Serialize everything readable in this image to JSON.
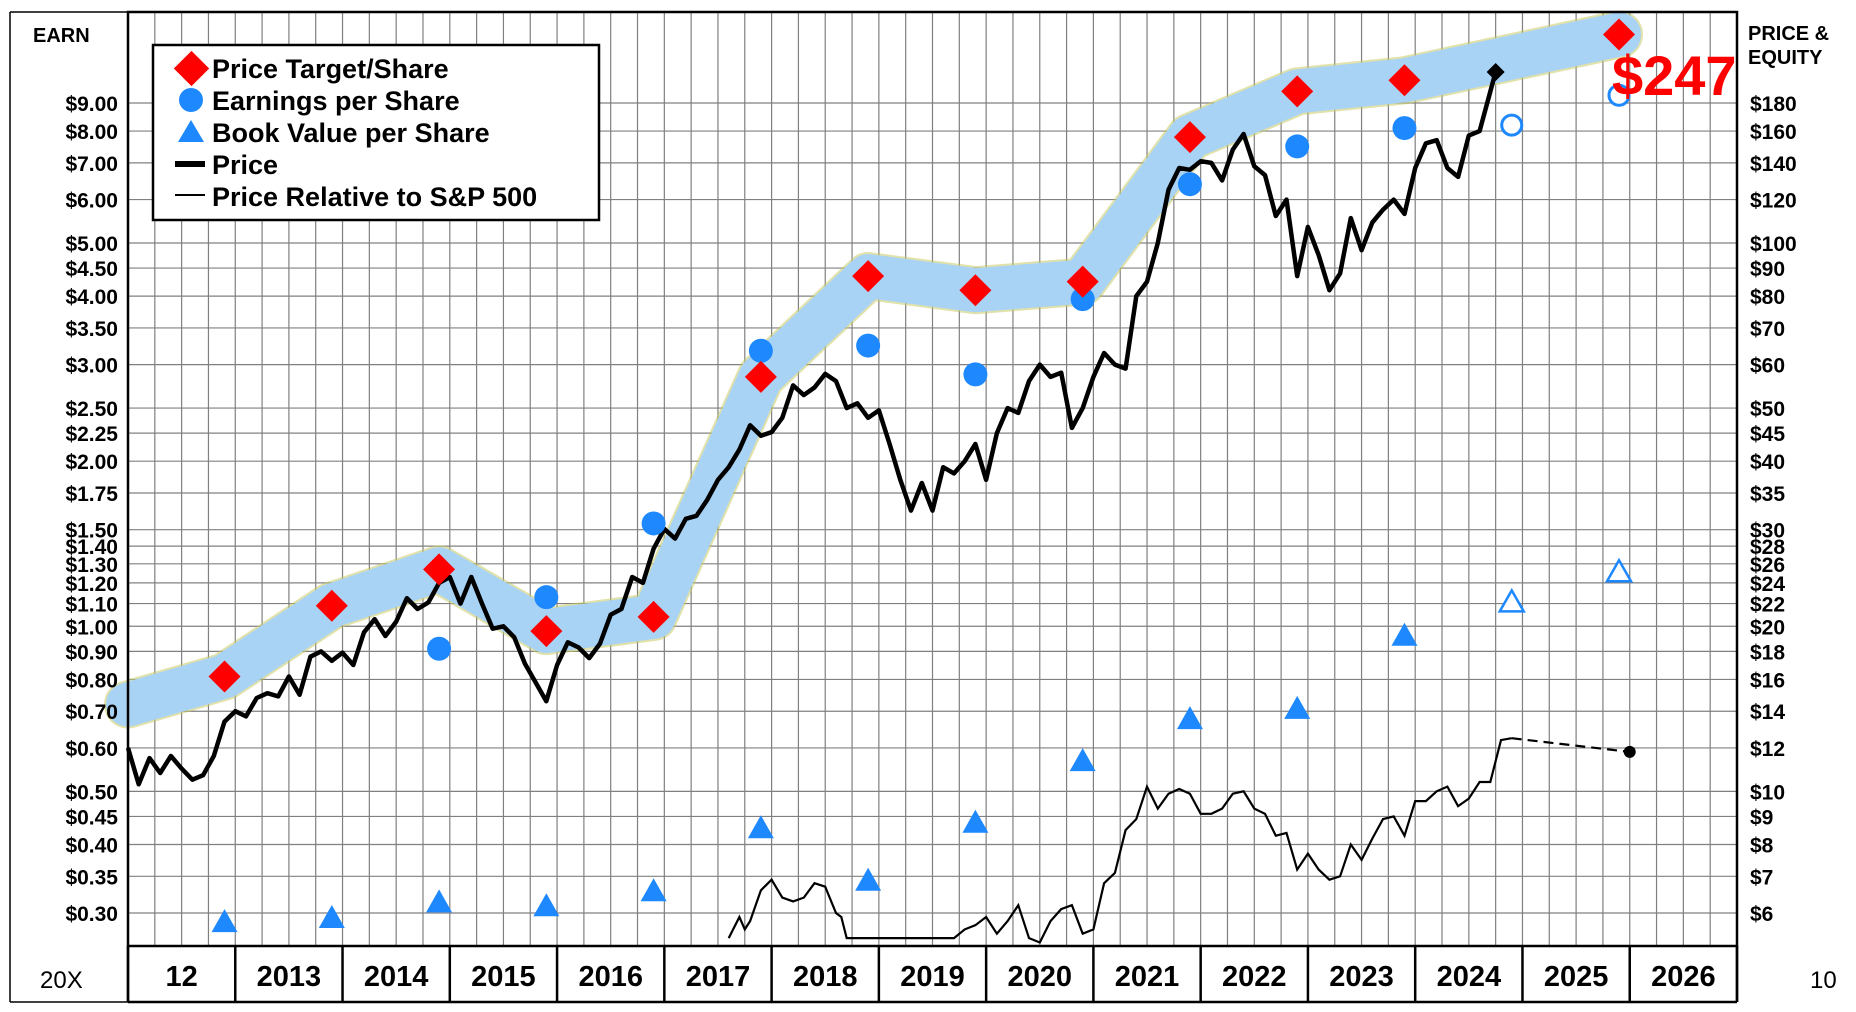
{
  "chart_data": {
    "type": "line",
    "title": "",
    "left_axis_label": "EARN",
    "right_axis_label": [
      "PRICE &",
      "EQUITY"
    ],
    "corner_left": "20X",
    "corner_right": "10",
    "big_price_label": "$247",
    "x_labels": [
      "12",
      "2013",
      "2014",
      "2015",
      "2016",
      "2017",
      "2018",
      "2019",
      "2020",
      "2021",
      "2022",
      "2023",
      "2024",
      "2025",
      "2026"
    ],
    "x_range": [
      2011.6,
      2026.6
    ],
    "earn_ticks": [
      {
        "v": 9.0,
        "label": "$9.00"
      },
      {
        "v": 8.0,
        "label": "$8.00"
      },
      {
        "v": 7.0,
        "label": "$7.00"
      },
      {
        "v": 6.0,
        "label": "$6.00"
      },
      {
        "v": 5.0,
        "label": "$5.00"
      },
      {
        "v": 4.5,
        "label": "$4.50"
      },
      {
        "v": 4.0,
        "label": "$4.00"
      },
      {
        "v": 3.5,
        "label": "$3.50"
      },
      {
        "v": 3.0,
        "label": "$3.00"
      },
      {
        "v": 2.5,
        "label": "$2.50"
      },
      {
        "v": 2.25,
        "label": "$2.25"
      },
      {
        "v": 2.0,
        "label": "$2.00"
      },
      {
        "v": 1.75,
        "label": "$1.75"
      },
      {
        "v": 1.5,
        "label": "$1.50"
      },
      {
        "v": 1.4,
        "label": "$1.40"
      },
      {
        "v": 1.3,
        "label": "$1.30"
      },
      {
        "v": 1.2,
        "label": "$1.20"
      },
      {
        "v": 1.1,
        "label": "$1.10"
      },
      {
        "v": 1.0,
        "label": "$1.00"
      },
      {
        "v": 0.9,
        "label": "$0.90"
      },
      {
        "v": 0.8,
        "label": "$0.80"
      },
      {
        "v": 0.7,
        "label": "$0.70"
      },
      {
        "v": 0.6,
        "label": "$0.60"
      },
      {
        "v": 0.5,
        "label": "$0.50"
      },
      {
        "v": 0.45,
        "label": "$0.45"
      },
      {
        "v": 0.4,
        "label": "$0.40"
      },
      {
        "v": 0.35,
        "label": "$0.35"
      },
      {
        "v": 0.3,
        "label": "$0.30"
      }
    ],
    "price_ticks": [
      {
        "v": 180,
        "label": "$180"
      },
      {
        "v": 160,
        "label": "$160"
      },
      {
        "v": 140,
        "label": "$140"
      },
      {
        "v": 120,
        "label": "$120"
      },
      {
        "v": 100,
        "label": "$100"
      },
      {
        "v": 90,
        "label": "$90"
      },
      {
        "v": 80,
        "label": "$80"
      },
      {
        "v": 70,
        "label": "$70"
      },
      {
        "v": 60,
        "label": "$60"
      },
      {
        "v": 50,
        "label": "$50"
      },
      {
        "v": 45,
        "label": "$45"
      },
      {
        "v": 40,
        "label": "$40"
      },
      {
        "v": 35,
        "label": "$35"
      },
      {
        "v": 30,
        "label": "$30"
      },
      {
        "v": 28,
        "label": "$28"
      },
      {
        "v": 26,
        "label": "$26"
      },
      {
        "v": 24,
        "label": "$24"
      },
      {
        "v": 22,
        "label": "$22"
      },
      {
        "v": 20,
        "label": "$20"
      },
      {
        "v": 18,
        "label": "$18"
      },
      {
        "v": 16,
        "label": "$16"
      },
      {
        "v": 14,
        "label": "$14"
      },
      {
        "v": 12,
        "label": "$12"
      },
      {
        "v": 10,
        "label": "$10"
      },
      {
        "v": 9,
        "label": "$9"
      },
      {
        "v": 8,
        "label": "$8"
      },
      {
        "v": 7,
        "label": "$7"
      },
      {
        "v": 6,
        "label": "$6"
      }
    ],
    "price_to_earn_ratio": 20,
    "legend": [
      {
        "label": "Price Target/Share",
        "marker": "diamond",
        "color": "#ff0000"
      },
      {
        "label": "Earnings per Share",
        "marker": "circle",
        "color": "#1e88ff"
      },
      {
        "label": "Book Value per Share",
        "marker": "triangle",
        "color": "#1e88ff"
      },
      {
        "label": "Price",
        "marker": "thick-line",
        "color": "#000000"
      },
      {
        "label": "Price Relative to S&P 500",
        "marker": "thin-line",
        "color": "#000000"
      }
    ],
    "band_color": "#a9d3f5",
    "series": {
      "price_target": [
        {
          "x": 2012.5,
          "v": 0.81
        },
        {
          "x": 2013.5,
          "v": 1.09
        },
        {
          "x": 2014.5,
          "v": 1.27
        },
        {
          "x": 2015.5,
          "v": 0.98
        },
        {
          "x": 2016.5,
          "v": 1.04
        },
        {
          "x": 2017.5,
          "v": 2.85
        },
        {
          "x": 2018.5,
          "v": 4.35
        },
        {
          "x": 2019.5,
          "v": 4.1
        },
        {
          "x": 2020.5,
          "v": 4.25
        },
        {
          "x": 2021.5,
          "v": 7.8
        },
        {
          "x": 2022.5,
          "v": 9.45
        },
        {
          "x": 2023.5,
          "v": 9.9
        },
        {
          "x": 2025.5,
          "v": 12.0
        }
      ],
      "target_band_start": {
        "x": 2011.6,
        "v": 0.72
      },
      "eps": [
        {
          "x": 2014.5,
          "v": 0.91
        },
        {
          "x": 2015.5,
          "v": 1.13
        },
        {
          "x": 2016.5,
          "v": 1.54
        },
        {
          "x": 2017.5,
          "v": 3.18
        },
        {
          "x": 2018.5,
          "v": 3.25
        },
        {
          "x": 2019.5,
          "v": 2.88
        },
        {
          "x": 2020.5,
          "v": 3.95
        },
        {
          "x": 2021.5,
          "v": 6.4
        },
        {
          "x": 2022.5,
          "v": 7.5
        },
        {
          "x": 2023.5,
          "v": 8.1
        }
      ],
      "eps_estimates": [
        {
          "x": 2024.5,
          "v": 8.2
        },
        {
          "x": 2025.5,
          "v": 9.3
        }
      ],
      "book_value": [
        {
          "x": 2012.5,
          "v": 0.29
        },
        {
          "x": 2013.5,
          "v": 0.295
        },
        {
          "x": 2014.5,
          "v": 0.315
        },
        {
          "x": 2015.5,
          "v": 0.31
        },
        {
          "x": 2016.5,
          "v": 0.33
        },
        {
          "x": 2017.5,
          "v": 0.43
        },
        {
          "x": 2018.5,
          "v": 0.345
        },
        {
          "x": 2019.5,
          "v": 0.44
        },
        {
          "x": 2020.5,
          "v": 0.57
        },
        {
          "x": 2021.5,
          "v": 0.68
        },
        {
          "x": 2022.5,
          "v": 0.71
        },
        {
          "x": 2023.5,
          "v": 0.965
        }
      ],
      "book_value_estimates": [
        {
          "x": 2024.5,
          "v": 1.11
        },
        {
          "x": 2025.5,
          "v": 1.26
        }
      ],
      "price": [
        [
          2011.6,
          12.0
        ],
        [
          2011.7,
          10.3
        ],
        [
          2011.8,
          11.5
        ],
        [
          2011.9,
          10.8
        ],
        [
          2012.0,
          11.6
        ],
        [
          2012.1,
          11.0
        ],
        [
          2012.2,
          10.5
        ],
        [
          2012.3,
          10.7
        ],
        [
          2012.4,
          11.6
        ],
        [
          2012.5,
          13.4
        ],
        [
          2012.6,
          14.0
        ],
        [
          2012.7,
          13.7
        ],
        [
          2012.8,
          14.8
        ],
        [
          2012.9,
          15.1
        ],
        [
          2013.0,
          14.9
        ],
        [
          2013.1,
          16.2
        ],
        [
          2013.2,
          15.0
        ],
        [
          2013.3,
          17.6
        ],
        [
          2013.4,
          18.0
        ],
        [
          2013.5,
          17.3
        ],
        [
          2013.6,
          17.9
        ],
        [
          2013.7,
          17.0
        ],
        [
          2013.8,
          19.5
        ],
        [
          2013.9,
          20.6
        ],
        [
          2014.0,
          19.2
        ],
        [
          2014.1,
          20.4
        ],
        [
          2014.2,
          22.5
        ],
        [
          2014.3,
          21.5
        ],
        [
          2014.4,
          22.1
        ],
        [
          2014.5,
          24.0
        ],
        [
          2014.6,
          24.6
        ],
        [
          2014.7,
          22.0
        ],
        [
          2014.8,
          24.6
        ],
        [
          2014.9,
          22.0
        ],
        [
          2015.0,
          19.8
        ],
        [
          2015.1,
          20.0
        ],
        [
          2015.2,
          19.1
        ],
        [
          2015.3,
          17.1
        ],
        [
          2015.4,
          15.8
        ],
        [
          2015.5,
          14.6
        ],
        [
          2015.6,
          17.0
        ],
        [
          2015.7,
          18.7
        ],
        [
          2015.8,
          18.3
        ],
        [
          2015.9,
          17.5
        ],
        [
          2016.0,
          18.6
        ],
        [
          2016.1,
          21.0
        ],
        [
          2016.2,
          21.5
        ],
        [
          2016.3,
          24.6
        ],
        [
          2016.4,
          24.0
        ],
        [
          2016.5,
          27.7
        ],
        [
          2016.6,
          30.1
        ],
        [
          2016.7,
          28.9
        ],
        [
          2016.8,
          31.4
        ],
        [
          2016.9,
          31.8
        ],
        [
          2017.0,
          34.0
        ],
        [
          2017.1,
          37.0
        ],
        [
          2017.2,
          39.0
        ],
        [
          2017.3,
          42.0
        ],
        [
          2017.4,
          46.5
        ],
        [
          2017.5,
          44.5
        ],
        [
          2017.6,
          45.2
        ],
        [
          2017.7,
          48.0
        ],
        [
          2017.8,
          55.0
        ],
        [
          2017.9,
          52.8
        ],
        [
          2018.0,
          54.5
        ],
        [
          2018.1,
          57.7
        ],
        [
          2018.2,
          56.0
        ],
        [
          2018.3,
          50.0
        ],
        [
          2018.4,
          51.0
        ],
        [
          2018.5,
          48.0
        ],
        [
          2018.6,
          49.5
        ],
        [
          2018.7,
          43.0
        ],
        [
          2018.8,
          37.0
        ],
        [
          2018.9,
          32.5
        ],
        [
          2019.0,
          36.5
        ],
        [
          2019.1,
          32.5
        ],
        [
          2019.2,
          39.0
        ],
        [
          2019.3,
          38.0
        ],
        [
          2019.4,
          40.0
        ],
        [
          2019.5,
          43.0
        ],
        [
          2019.6,
          37.0
        ],
        [
          2019.7,
          45.0
        ],
        [
          2019.8,
          50.0
        ],
        [
          2019.9,
          49.0
        ],
        [
          2020.0,
          56.0
        ],
        [
          2020.1,
          60.0
        ],
        [
          2020.2,
          57.0
        ],
        [
          2020.3,
          58.0
        ],
        [
          2020.4,
          46.0
        ],
        [
          2020.5,
          50.0
        ],
        [
          2020.6,
          57.0
        ],
        [
          2020.7,
          63.0
        ],
        [
          2020.8,
          60.0
        ],
        [
          2020.9,
          59.0
        ],
        [
          2021.0,
          80.0
        ],
        [
          2021.1,
          85.0
        ],
        [
          2021.2,
          100.0
        ],
        [
          2021.3,
          125.0
        ],
        [
          2021.4,
          137.0
        ],
        [
          2021.5,
          136.0
        ],
        [
          2021.6,
          141.0
        ],
        [
          2021.7,
          140.0
        ],
        [
          2021.8,
          130.0
        ],
        [
          2021.9,
          148.0
        ],
        [
          2022.0,
          158.0
        ],
        [
          2022.1,
          138.0
        ],
        [
          2022.2,
          133.0
        ],
        [
          2022.3,
          112.0
        ],
        [
          2022.4,
          120.0
        ],
        [
          2022.5,
          87.0
        ],
        [
          2022.6,
          107.0
        ],
        [
          2022.7,
          95.0
        ],
        [
          2022.8,
          82.0
        ],
        [
          2022.9,
          88.0
        ],
        [
          2023.0,
          111.0
        ],
        [
          2023.1,
          97.0
        ],
        [
          2023.2,
          109.0
        ],
        [
          2023.3,
          115.0
        ],
        [
          2023.4,
          120.0
        ],
        [
          2023.5,
          113.0
        ],
        [
          2023.6,
          137.0
        ],
        [
          2023.7,
          152.0
        ],
        [
          2023.8,
          154.0
        ],
        [
          2023.9,
          137.0
        ],
        [
          2024.0,
          132.0
        ],
        [
          2024.1,
          157.0
        ],
        [
          2024.2,
          160.0
        ],
        [
          2024.35,
          205.0
        ]
      ],
      "price_end_marker": {
        "x": 2024.35,
        "v": 205.0
      },
      "relative_strength": [
        [
          2017.2,
          5.4
        ],
        [
          2017.3,
          5.9
        ],
        [
          2017.35,
          5.6
        ],
        [
          2017.4,
          5.8
        ],
        [
          2017.5,
          6.6
        ],
        [
          2017.6,
          6.9
        ],
        [
          2017.7,
          6.4
        ],
        [
          2017.8,
          6.3
        ],
        [
          2017.9,
          6.4
        ],
        [
          2018.0,
          6.8
        ],
        [
          2018.1,
          6.7
        ],
        [
          2018.2,
          6.0
        ],
        [
          2018.25,
          5.9
        ],
        [
          2018.3,
          5.4
        ],
        [
          2019.3,
          5.4
        ],
        [
          2019.4,
          5.6
        ],
        [
          2019.5,
          5.7
        ],
        [
          2019.6,
          5.9
        ],
        [
          2019.7,
          5.5
        ],
        [
          2019.8,
          5.8
        ],
        [
          2019.9,
          6.2
        ],
        [
          2020.0,
          5.4
        ],
        [
          2020.1,
          5.3
        ],
        [
          2020.2,
          5.8
        ],
        [
          2020.3,
          6.1
        ],
        [
          2020.4,
          6.2
        ],
        [
          2020.5,
          5.5
        ],
        [
          2020.6,
          5.6
        ],
        [
          2020.7,
          6.8
        ],
        [
          2020.8,
          7.1
        ],
        [
          2020.9,
          8.5
        ],
        [
          2021.0,
          8.9
        ],
        [
          2021.1,
          10.2
        ],
        [
          2021.2,
          9.3
        ],
        [
          2021.3,
          9.9
        ],
        [
          2021.4,
          10.1
        ],
        [
          2021.5,
          9.9
        ],
        [
          2021.6,
          9.1
        ],
        [
          2021.7,
          9.1
        ],
        [
          2021.8,
          9.3
        ],
        [
          2021.9,
          9.9
        ],
        [
          2022.0,
          10.0
        ],
        [
          2022.1,
          9.3
        ],
        [
          2022.2,
          9.1
        ],
        [
          2022.3,
          8.3
        ],
        [
          2022.4,
          8.4
        ],
        [
          2022.5,
          7.2
        ],
        [
          2022.6,
          7.7
        ],
        [
          2022.7,
          7.2
        ],
        [
          2022.8,
          6.9
        ],
        [
          2022.9,
          7.0
        ],
        [
          2023.0,
          8.0
        ],
        [
          2023.1,
          7.5
        ],
        [
          2023.2,
          8.2
        ],
        [
          2023.3,
          8.9
        ],
        [
          2023.4,
          9.0
        ],
        [
          2023.5,
          8.3
        ],
        [
          2023.6,
          9.6
        ],
        [
          2023.7,
          9.6
        ],
        [
          2023.8,
          10.0
        ],
        [
          2023.9,
          10.2
        ],
        [
          2024.0,
          9.4
        ],
        [
          2024.1,
          9.7
        ],
        [
          2024.2,
          10.4
        ],
        [
          2024.3,
          10.4
        ],
        [
          2024.4,
          12.4
        ],
        [
          2024.5,
          12.5
        ]
      ],
      "relative_strength_projection": [
        [
          2024.5,
          12.5
        ],
        [
          2025.6,
          11.8
        ]
      ],
      "relative_strength_end_marker": {
        "x": 2025.6,
        "v": 11.8
      }
    }
  }
}
